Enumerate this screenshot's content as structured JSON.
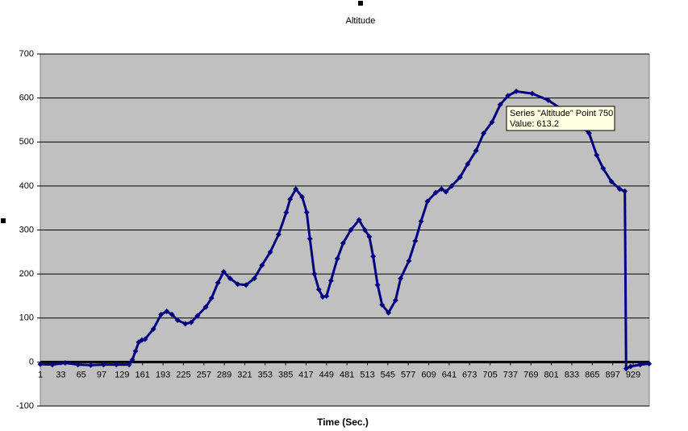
{
  "chart_data": {
    "type": "line",
    "title": "Altitude",
    "x_label": "Time (Sec.)",
    "x": [
      1,
      20,
      40,
      60,
      80,
      100,
      120,
      140,
      145,
      150,
      155,
      160,
      165,
      178,
      190,
      199,
      207,
      216,
      228,
      237,
      247,
      260,
      269,
      279,
      288,
      298,
      310,
      323,
      336,
      348,
      361,
      374,
      386,
      392,
      401,
      411,
      418,
      423,
      430,
      437,
      443,
      449,
      456,
      466,
      475,
      487,
      500,
      509,
      516,
      522,
      529,
      536,
      546,
      557,
      565,
      578,
      588,
      597,
      607,
      620,
      629,
      636,
      645,
      658,
      670,
      683,
      695,
      708,
      721,
      733,
      746,
      771,
      796,
      822,
      841,
      860,
      872,
      882,
      895,
      908,
      916,
      918,
      925,
      940,
      954
    ],
    "series": [
      {
        "name": "Altitude",
        "color": "#000080",
        "values": [
          -5,
          -6,
          -2,
          -6,
          -7,
          -6,
          -6,
          -6,
          5,
          25,
          45,
          50,
          52,
          75,
          108,
          115,
          108,
          95,
          87,
          90,
          105,
          125,
          145,
          180,
          205,
          190,
          177,
          175,
          190,
          220,
          250,
          290,
          340,
          370,
          393,
          375,
          340,
          280,
          200,
          165,
          148,
          150,
          185,
          235,
          270,
          300,
          323,
          300,
          285,
          240,
          175,
          130,
          112,
          140,
          190,
          230,
          275,
          320,
          365,
          385,
          393,
          387,
          400,
          420,
          450,
          480,
          520,
          545,
          585,
          605,
          615,
          610,
          595,
          570,
          545,
          520,
          470,
          440,
          410,
          393,
          388,
          -15,
          -10,
          -6,
          -4
        ]
      }
    ],
    "xlim": [
      1,
      954
    ],
    "xticks": [
      1,
      33,
      65,
      97,
      129,
      161,
      193,
      225,
      257,
      289,
      321,
      353,
      385,
      417,
      449,
      481,
      513,
      545,
      577,
      609,
      641,
      673,
      705,
      737,
      769,
      801,
      833,
      865,
      897,
      929
    ],
    "ylim": [
      -100,
      700
    ],
    "yticks": [
      -100,
      0,
      100,
      200,
      300,
      400,
      500,
      600,
      700
    ],
    "grid": true,
    "tooltip": {
      "line1": "Series \"Altitude\" Point 750",
      "line2": "Value: 613.2"
    }
  }
}
